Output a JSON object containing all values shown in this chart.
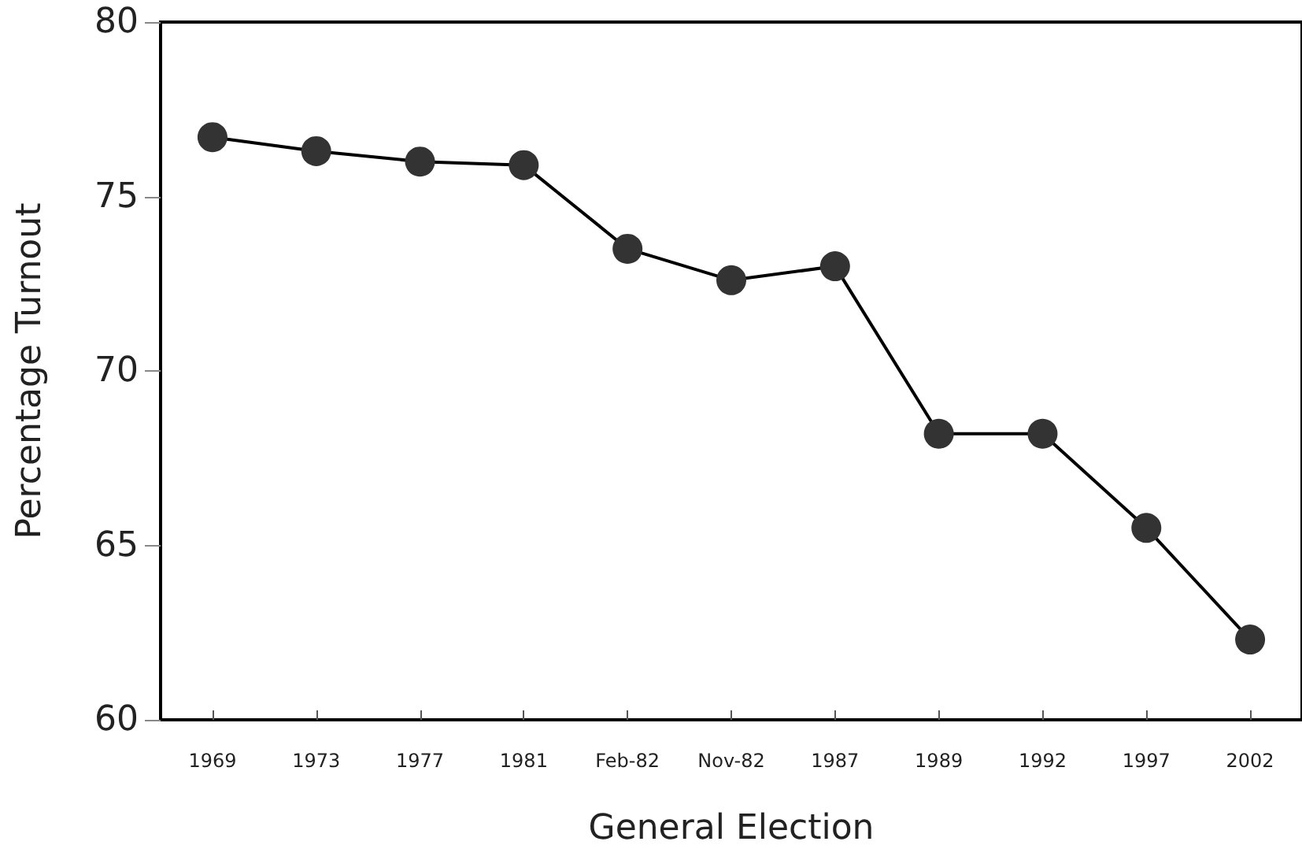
{
  "chart_data": {
    "type": "line",
    "xlabel": "General Election",
    "ylabel": "Percentage Turnout",
    "categories": [
      "1969",
      "1973",
      "1977",
      "1981",
      "Feb-82",
      "Nov-82",
      "1987",
      "1989",
      "1992",
      "1997",
      "2002"
    ],
    "series": [
      {
        "color": "#333333",
        "values": [
          76.7,
          76.3,
          76.0,
          75.9,
          73.5,
          72.6,
          73.0,
          68.2,
          68.2,
          65.5,
          62.3
        ]
      }
    ],
    "ylim": [
      60,
      80
    ],
    "yticks": [
      60,
      65,
      70,
      75,
      80
    ],
    "marker": "circle",
    "line_style": "solid"
  }
}
